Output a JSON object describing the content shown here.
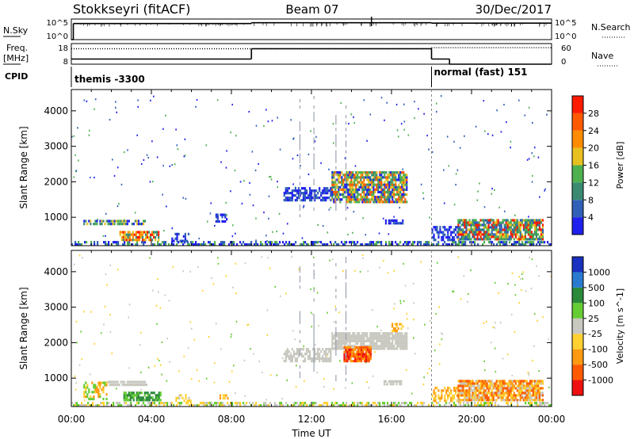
{
  "header": {
    "station": "Stokkseyri (fitACF)",
    "beam": "Beam 07",
    "date": "30/Dec/2017"
  },
  "strip": {
    "nsky_label": "N.Sky",
    "nsky_top_tick": "10^5",
    "nsky_bottom_tick": "10^0",
    "nsearch_label": "N.Search",
    "freq_label_line1": "Freq.",
    "freq_label_line2": "[MHz]",
    "freq_top_tick": "18",
    "freq_bottom_tick": "8",
    "nave_top_tick": "60",
    "nave_bottom_tick": "0",
    "nave_label": "Nave",
    "cpid_label": "CPID",
    "cpid_left": "themis -3300",
    "cpid_right": "normal (fast) 151"
  },
  "chart_data": [
    {
      "type": "heatmap",
      "name": "power",
      "ylabel": "Slant Range [km]",
      "yticks": [
        1000,
        2000,
        3000,
        4000
      ],
      "ylim": [
        200,
        4600
      ],
      "colorbar": {
        "label": "Power [dB]",
        "ticks": [
          "4",
          "8",
          "12",
          "16",
          "20",
          "24",
          "28"
        ],
        "colors": [
          "#2020ee",
          "#3060b8",
          "#3a8a72",
          "#4fb04f",
          "#e8c020",
          "#ff8c00",
          "#ff5a00",
          "#ff1a00"
        ]
      },
      "echo_regions": [
        {
          "t0": 0.0,
          "t1": 24.0,
          "r0": 200,
          "r1": 330,
          "colors": [
            "#2020ee",
            "#3060b8",
            "#4fb04f"
          ],
          "density": 0.55
        },
        {
          "t0": 0.6,
          "t1": 3.8,
          "r0": 780,
          "r1": 940,
          "colors": [
            "#2020ee",
            "#3a8a72",
            "#4fb04f",
            "#e8c020"
          ],
          "density": 0.75
        },
        {
          "t0": 2.4,
          "t1": 4.4,
          "r0": 330,
          "r1": 620,
          "colors": [
            "#3a8a72",
            "#e8c020",
            "#ff8c00",
            "#ff1a00"
          ],
          "density": 0.8
        },
        {
          "t0": 5.0,
          "t1": 5.9,
          "r0": 300,
          "r1": 560,
          "colors": [
            "#2020ee",
            "#3060b8"
          ],
          "density": 0.5
        },
        {
          "t0": 7.2,
          "t1": 7.8,
          "r0": 850,
          "r1": 1100,
          "colors": [
            "#2020ee",
            "#3060b8"
          ],
          "density": 0.6
        },
        {
          "t0": 10.6,
          "t1": 13.0,
          "r0": 1450,
          "r1": 1850,
          "colors": [
            "#2020ee",
            "#3060b8"
          ],
          "density": 0.6
        },
        {
          "t0": 13.0,
          "t1": 16.8,
          "r0": 1400,
          "r1": 2300,
          "colors": [
            "#2020ee",
            "#3a8a72",
            "#4fb04f",
            "#e8c020",
            "#ff5a00"
          ],
          "density": 0.85
        },
        {
          "t0": 15.6,
          "t1": 16.6,
          "r0": 800,
          "r1": 950,
          "colors": [
            "#2020ee",
            "#3060b8"
          ],
          "density": 0.6
        },
        {
          "t0": 18.0,
          "t1": 19.4,
          "r0": 330,
          "r1": 760,
          "colors": [
            "#2020ee",
            "#3060b8"
          ],
          "density": 0.55
        },
        {
          "t0": 19.3,
          "t1": 23.6,
          "r0": 350,
          "r1": 950,
          "colors": [
            "#3060b8",
            "#3a8a72",
            "#4fb04f",
            "#e8c020",
            "#ff1a00"
          ],
          "density": 0.85
        }
      ]
    },
    {
      "type": "heatmap",
      "name": "velocity",
      "ylabel": "Slant Range [km]",
      "yticks": [
        1000,
        2000,
        3000,
        4000
      ],
      "ylim": [
        200,
        4600
      ],
      "colorbar": {
        "label": "Velocity [m s^-1]",
        "ticks": [
          "1000",
          "500",
          "100",
          "25",
          "-25",
          "-100",
          "-500",
          "-1000"
        ],
        "colors": [
          "#1a30c0",
          "#2a7ad0",
          "#2a8a3a",
          "#66cc33",
          "#c8c8c0",
          "#ffd030",
          "#ff9a10",
          "#ff5a00",
          "#ee1010"
        ]
      },
      "echo_regions": [
        {
          "t0": 0.0,
          "t1": 24.0,
          "r0": 200,
          "r1": 330,
          "colors": [
            "#ffd030",
            "#c8c8c0",
            "#66cc33"
          ],
          "density": 0.5
        },
        {
          "t0": 0.6,
          "t1": 1.8,
          "r0": 380,
          "r1": 900,
          "colors": [
            "#66cc33",
            "#ffd030",
            "#ff9a10"
          ],
          "density": 0.55
        },
        {
          "t0": 1.8,
          "t1": 3.8,
          "r0": 780,
          "r1": 940,
          "colors": [
            "#c8c8c0"
          ],
          "density": 0.85
        },
        {
          "t0": 2.6,
          "t1": 4.5,
          "r0": 350,
          "r1": 620,
          "colors": [
            "#66cc33",
            "#2a8a3a"
          ],
          "density": 0.8
        },
        {
          "t0": 5.2,
          "t1": 6.0,
          "r0": 330,
          "r1": 560,
          "colors": [
            "#ffd030",
            "#c8c8c0"
          ],
          "density": 0.5
        },
        {
          "t0": 7.4,
          "t1": 8.0,
          "r0": 400,
          "r1": 560,
          "colors": [
            "#ffd030",
            "#ff9a10"
          ],
          "density": 0.6
        },
        {
          "t0": 10.6,
          "t1": 13.0,
          "r0": 1450,
          "r1": 1850,
          "colors": [
            "#c8c8c0"
          ],
          "density": 0.6
        },
        {
          "t0": 13.0,
          "t1": 16.8,
          "r0": 1800,
          "r1": 2300,
          "colors": [
            "#c8c8c0"
          ],
          "density": 0.9
        },
        {
          "t0": 13.6,
          "t1": 15.0,
          "r0": 1450,
          "r1": 1900,
          "colors": [
            "#ff5a00",
            "#ee1010",
            "#ff9a10"
          ],
          "density": 0.85
        },
        {
          "t0": 16.0,
          "t1": 16.6,
          "r0": 2300,
          "r1": 2550,
          "colors": [
            "#ff9a10",
            "#ffd030"
          ],
          "density": 0.6
        },
        {
          "t0": 15.6,
          "t1": 16.6,
          "r0": 800,
          "r1": 950,
          "colors": [
            "#c8c8c0"
          ],
          "density": 0.6
        },
        {
          "t0": 18.0,
          "t1": 19.4,
          "r0": 330,
          "r1": 760,
          "colors": [
            "#ffd030",
            "#ff9a10"
          ],
          "density": 0.55
        },
        {
          "t0": 19.3,
          "t1": 23.6,
          "r0": 350,
          "r1": 950,
          "colors": [
            "#c8c8c0",
            "#ffd030",
            "#ff9a10",
            "#ff5a00"
          ],
          "density": 0.85
        }
      ]
    }
  ],
  "x_axis": {
    "label": "Time UT",
    "ticks": [
      "00:00",
      "04:00",
      "08:00",
      "12:00",
      "16:00",
      "20:00",
      "00:00"
    ],
    "range_hours": [
      0,
      24
    ]
  },
  "nsky_series": [
    {
      "t0": 0.0,
      "t1": 0.1,
      "level": 0.0
    },
    {
      "t0": 0.1,
      "t1": 9.0,
      "level": 0.78
    },
    {
      "t0": 9.0,
      "t1": 18.0,
      "level": 0.82
    },
    {
      "t0": 18.0,
      "t1": 24.0,
      "level": 0.8
    }
  ],
  "nsky_spikes_hours": [
    15.0
  ],
  "freq_series": [
    {
      "t0": 0.0,
      "t1": 9.0,
      "level": 0.25
    },
    {
      "t0": 9.0,
      "t1": 18.0,
      "level": 0.75
    },
    {
      "t0": 18.0,
      "t1": 18.9,
      "level": 0.25
    },
    {
      "t0": 18.9,
      "t1": 24.0,
      "level": 0.0
    }
  ],
  "nave_series": [
    {
      "t0": 0.0,
      "t1": 18.0,
      "level": 0.75
    },
    {
      "t0": 18.0,
      "t1": 24.0,
      "level": 0.8
    }
  ],
  "cpid_switch_hour": 18.0
}
